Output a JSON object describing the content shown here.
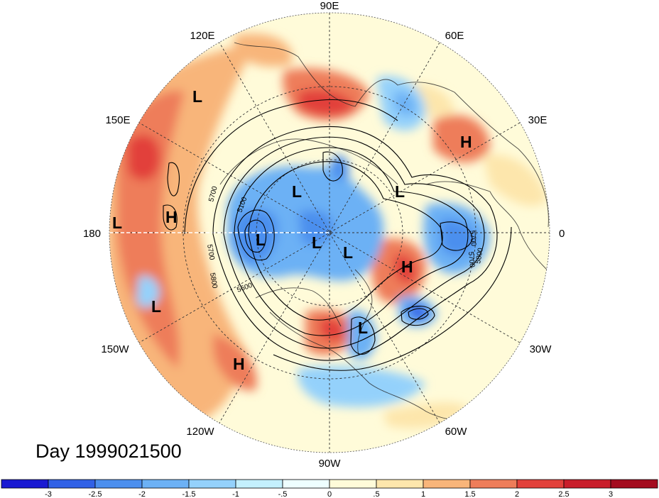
{
  "title": "Day 1999021500",
  "longitude_labels": [
    "90E",
    "60E",
    "30E",
    "0",
    "30W",
    "60W",
    "90W",
    "120W",
    "150W",
    "180",
    "150E",
    "120E"
  ],
  "pressure_centers": [
    {
      "type": "L",
      "id": "l-120e"
    },
    {
      "type": "H",
      "id": "h-30e"
    },
    {
      "type": "L",
      "id": "l-siberia"
    },
    {
      "type": "L",
      "id": "l-scandinavia"
    },
    {
      "type": "L",
      "id": "l-dateline"
    },
    {
      "type": "H",
      "id": "h-dateline"
    },
    {
      "type": "L",
      "id": "l-pole-1"
    },
    {
      "type": "L",
      "id": "l-pole-2"
    },
    {
      "type": "L",
      "id": "l-pole-3"
    },
    {
      "type": "H",
      "id": "h-atlantic"
    },
    {
      "type": "L",
      "id": "l-pacific"
    },
    {
      "type": "L",
      "id": "l-newengland"
    },
    {
      "type": "H",
      "id": "h-nepacific"
    }
  ],
  "contour_labels": [
    "5700",
    "5100",
    "5700",
    "5800",
    "5600",
    "5700",
    "5800",
    "5700"
  ],
  "colorbar": {
    "ticks": [
      "-3",
      "-2.5",
      "-2",
      "-1.5",
      "-1",
      "-.5",
      "0",
      ".5",
      "1",
      "1.5",
      "2",
      "2.5",
      "3"
    ],
    "colors": [
      "#1a1ad2",
      "#3161e6",
      "#4c8fee",
      "#6cb1f5",
      "#94d1fb",
      "#c4f0fd",
      "#eefeff",
      "#fffbd9",
      "#fde6ac",
      "#f8b57a",
      "#ee7d5a",
      "#e2413b",
      "#c91e2b",
      "#a40c1f"
    ]
  },
  "colors": {
    "background": "#ffffff",
    "contour": "#000000",
    "grid": "#333333"
  }
}
